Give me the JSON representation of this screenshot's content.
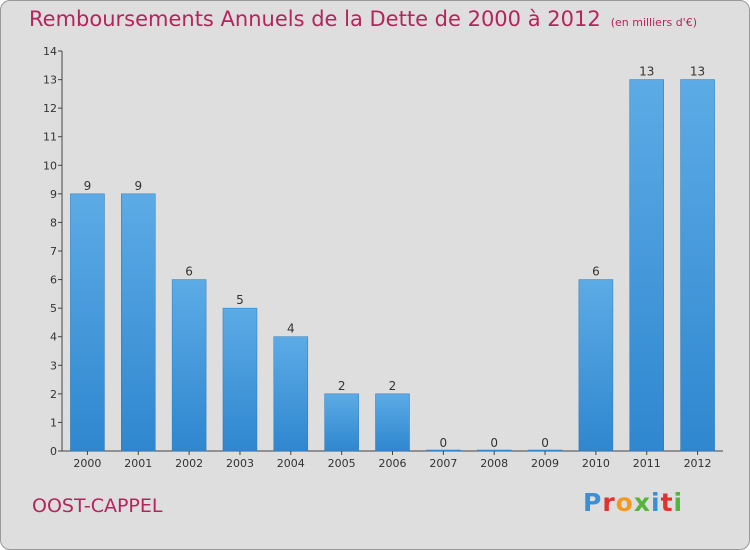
{
  "title": "Remboursements Annuels de la Dette de 2000 à 2012",
  "subtitle": "(en milliers d'€)",
  "city": "OOST-CAPPEL",
  "logo": {
    "text": "Proxiti",
    "colors": [
      "#3a8fd6",
      "#e0332f",
      "#f29a1f",
      "#56b33c",
      "#3a8fd6",
      "#e0332f",
      "#56b33c"
    ]
  },
  "colors": {
    "bar": "#2f87cf",
    "bar_light": "#5cabe6",
    "title": "#b5245d",
    "background": "#dedede"
  },
  "chart_data": {
    "type": "bar",
    "categories": [
      "2000",
      "2001",
      "2002",
      "2003",
      "2004",
      "2005",
      "2006",
      "2007",
      "2008",
      "2009",
      "2010",
      "2011",
      "2012"
    ],
    "values": [
      9,
      9,
      6,
      5,
      4,
      2,
      2,
      0,
      0,
      0,
      6,
      13,
      13
    ],
    "data_labels": [
      "9",
      "9",
      "6",
      "5",
      "4",
      "2",
      "2",
      "0",
      "0",
      "0",
      "6",
      "13",
      "13"
    ],
    "y_ticks": [
      "0",
      "1",
      "2",
      "3",
      "4",
      "5",
      "6",
      "7",
      "8",
      "9",
      "10",
      "11",
      "12",
      "13",
      "14"
    ],
    "ylim": [
      0,
      14
    ],
    "grid": false
  }
}
